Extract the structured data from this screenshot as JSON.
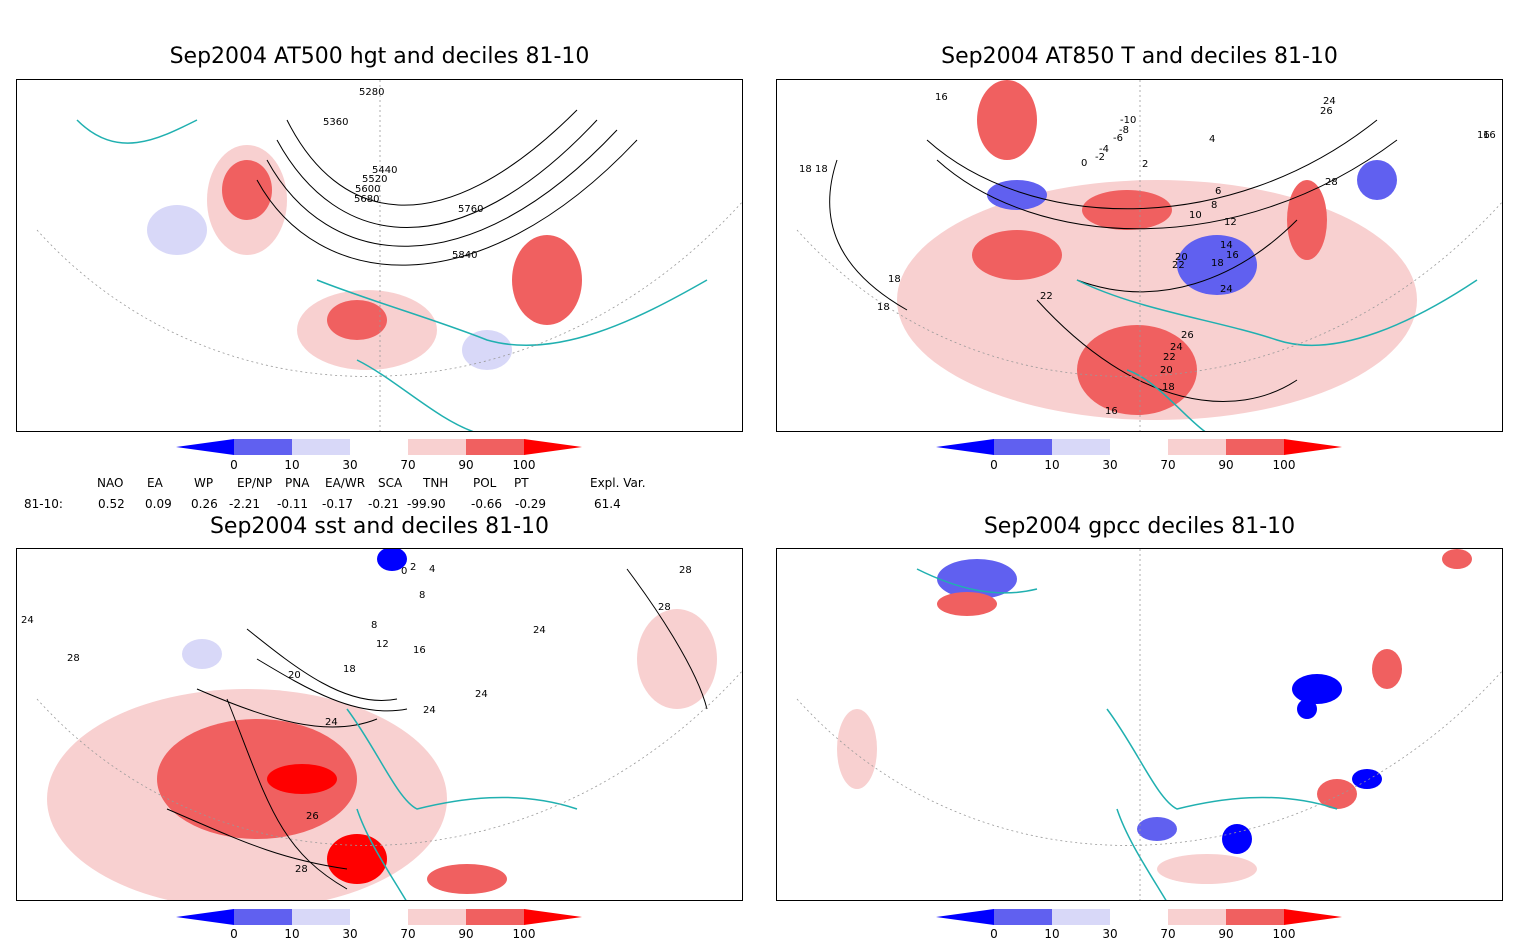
{
  "panels": [
    {
      "title": "Sep2004 AT500 hgt and deciles 81-10",
      "contour_labels": [
        "5280",
        "5360",
        "5440",
        "5520",
        "5600",
        "5680",
        "5760",
        "5840"
      ]
    },
    {
      "title": "Sep2004 AT850 T and deciles 81-10",
      "contour_labels": [
        "18",
        "16",
        "16",
        "-10",
        "-8",
        "-6",
        "-4",
        "-2",
        "0",
        "2",
        "4",
        "6",
        "8",
        "10",
        "12",
        "14",
        "16",
        "18",
        "20",
        "22",
        "24",
        "22",
        "24",
        "26",
        "28",
        "26",
        "24",
        "22",
        "20",
        "18",
        "16",
        "18",
        "18",
        "18",
        "16"
      ]
    },
    {
      "title": "Sep2004 sst and deciles 81-10",
      "contour_labels": [
        "24",
        "28",
        "0",
        "2",
        "4",
        "8",
        "8",
        "12",
        "16",
        "18",
        "20",
        "24",
        "24",
        "24",
        "26",
        "28",
        "24",
        "28",
        "28"
      ]
    },
    {
      "title": "Sep2004 gpcc deciles 81-10",
      "contour_labels": []
    }
  ],
  "colorbar": {
    "ticks": [
      "0",
      "10",
      "30",
      "70",
      "90",
      "100"
    ],
    "colors": [
      "#0000ff",
      "#6060f0",
      "#d8d8f8",
      "#ffffff",
      "#f8d0d0",
      "#f06060",
      "#ff0000"
    ]
  },
  "indices": {
    "headers": [
      "NAO",
      "EA",
      "WP",
      "EP/NP",
      "PNA",
      "EA/WR",
      "SCA",
      "TNH",
      "POL",
      "PT",
      "Expl. Var."
    ],
    "row_label": "81-10:",
    "values": [
      "0.52",
      "0.09",
      "0.26",
      "-2.21",
      "-0.11",
      "-0.17",
      "-0.21",
      "-99.90",
      "-0.66",
      "-0.29",
      "61.4"
    ]
  },
  "colors": {
    "coast": "#20b0b0",
    "grid": "#999999"
  }
}
